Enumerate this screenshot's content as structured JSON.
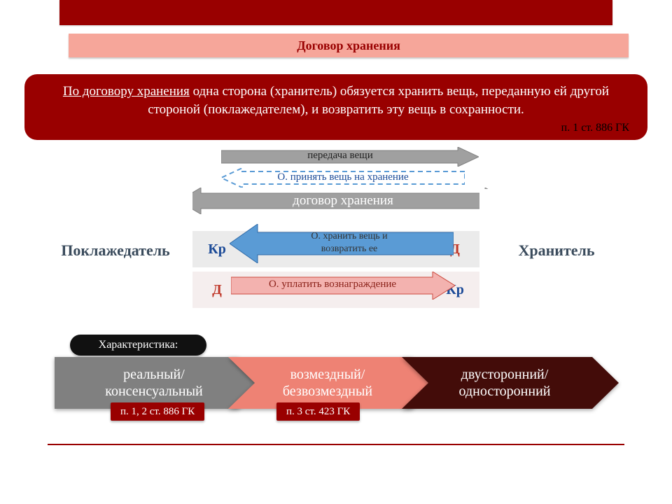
{
  "title": "Договор хранения",
  "definition": {
    "lead": "По договору хранения",
    "rest": " одна сторона (хранитель) обязуется хранить вещь, переданную ей другой стороной (поклажедателем), и возвратить эту вещь в сохранности.",
    "cite": "п. 1 ст. 886 ГК"
  },
  "parties": {
    "left": "Поклажедатель",
    "right": "Хранитель"
  },
  "arrows": {
    "transfer": "передача вещи",
    "accept": "О. принять вещь на хранение",
    "contract": "договор хранения",
    "keep": "О. хранить вещь и\nвозвратить ее",
    "pay": "О. уплатить вознаграждение"
  },
  "markers": {
    "kr": "Кр",
    "d": "Д"
  },
  "charLabel": "Характеристика:",
  "chevrons": [
    {
      "text": "реальный/\nконсенсуальный",
      "fill": "#808080"
    },
    {
      "text": "возмездный/\nбезвозмездный",
      "fill": "#ee8274"
    },
    {
      "text": "двусторонний/\nодносторонний",
      "fill": "#430c09"
    }
  ],
  "badges": [
    "п. 1, 2 ст. 886 ГК",
    "п. 3 ст. 423 ГК"
  ],
  "colors": {
    "brandRed": "#990000",
    "peach": "#f6a69a",
    "grey": "#a0a0a0",
    "blue": "#5a9bd5",
    "pink": "#f3b2af",
    "textNavy": "#3a4b5c"
  }
}
